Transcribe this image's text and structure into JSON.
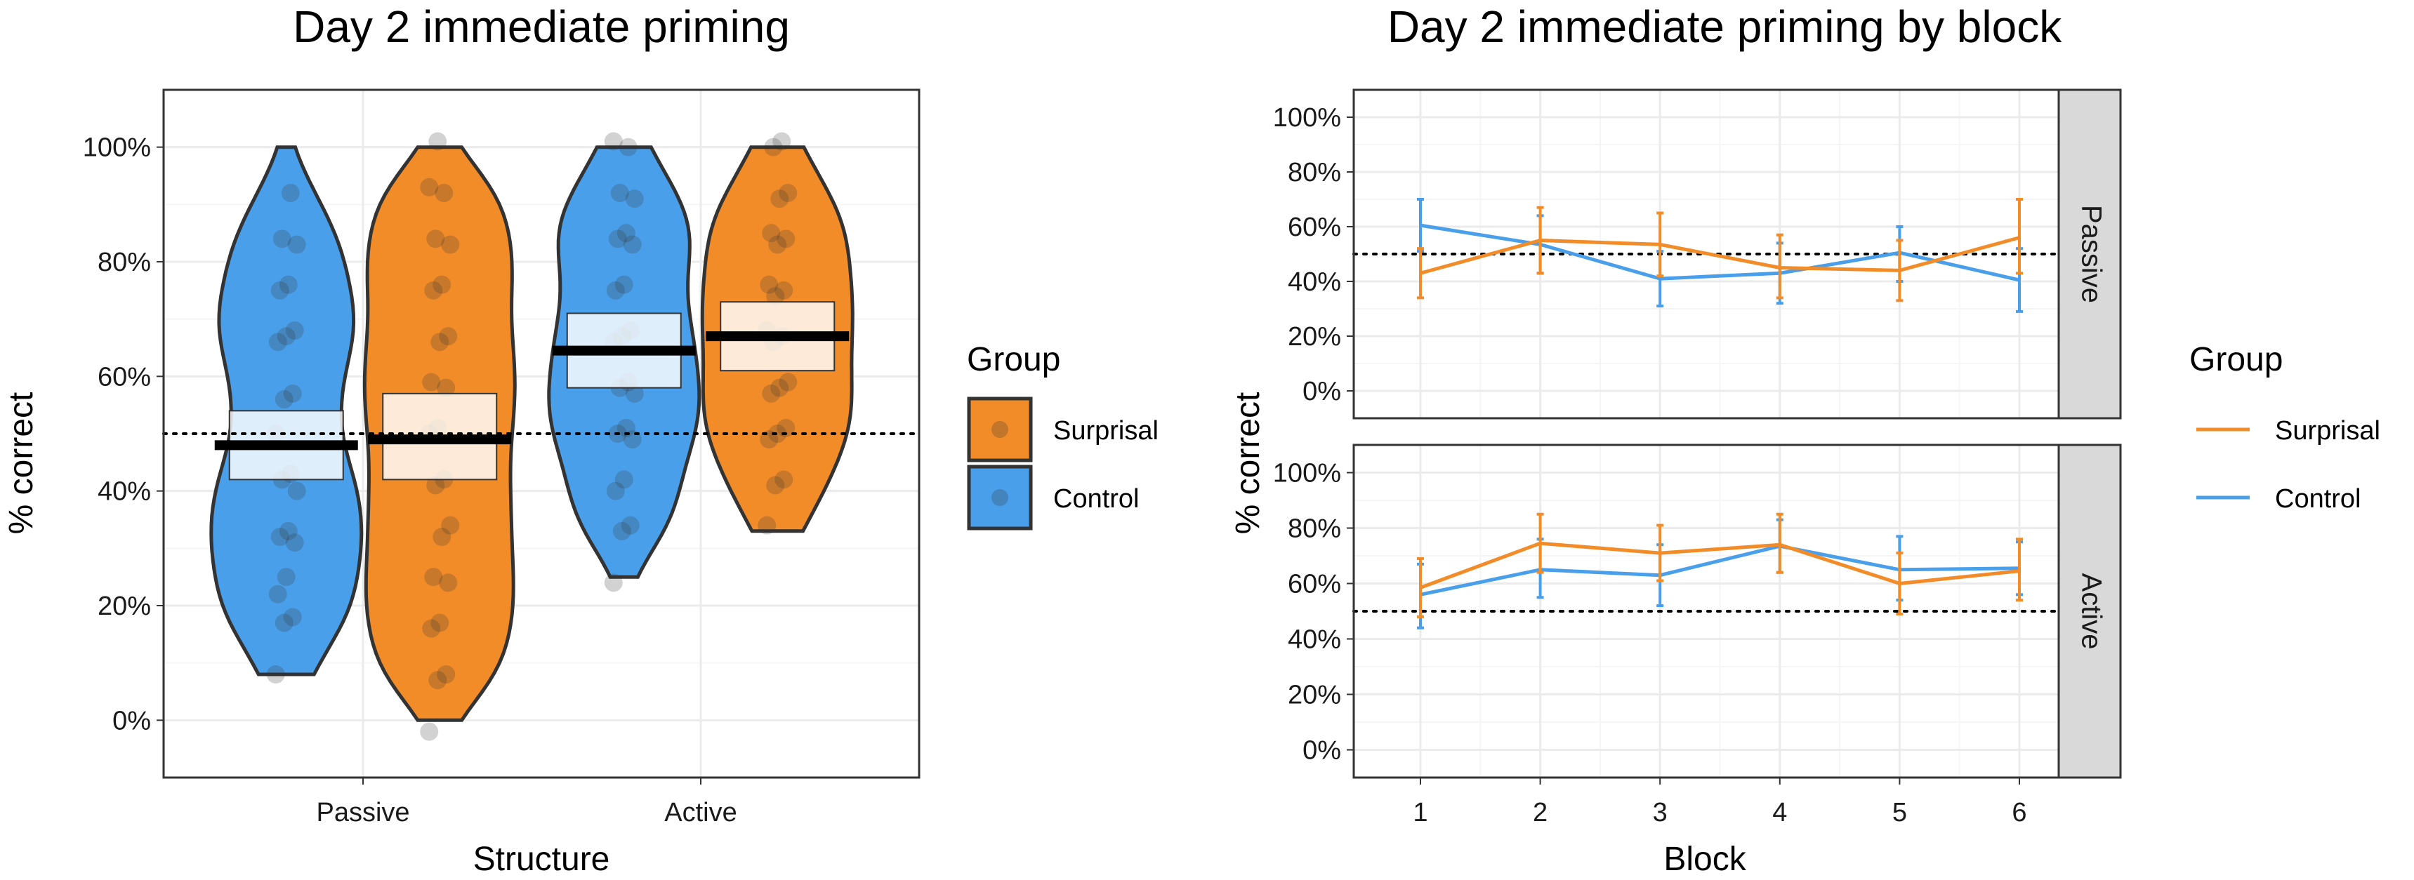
{
  "colors": {
    "surprisal": "#F28C28",
    "control": "#4A9FEA",
    "grid_major": "#EBEBEB",
    "grid_minor": "#F5F5F5",
    "strip_bg": "#D9D9D9"
  },
  "chart_data": [
    {
      "type": "violin",
      "title": "Day 2 immediate priming",
      "xlabel": "Structure",
      "ylabel": "% correct",
      "ylim": [
        -0.1,
        1.1
      ],
      "yticks": [
        "0%",
        "20%",
        "40%",
        "60%",
        "80%",
        "100%"
      ],
      "categories": [
        "Passive",
        "Active"
      ],
      "chance_line": 0.5,
      "grid": true,
      "legend": {
        "title": "Group",
        "position": "right",
        "entries": [
          "Surprisal",
          "Control"
        ]
      },
      "series": [
        {
          "name": "Control",
          "color": "control",
          "groups": [
            {
              "category": "Passive",
              "range": [
                0.08,
                1.0
              ],
              "mean": 0.48,
              "ci": [
                0.42,
                0.54
              ],
              "points": [
                0.08,
                0.17,
                0.18,
                0.22,
                0.25,
                0.31,
                0.32,
                0.33,
                0.4,
                0.42,
                0.43,
                0.5,
                0.56,
                0.57,
                0.66,
                0.67,
                0.68,
                0.75,
                0.76,
                0.83,
                0.84,
                0.92
              ]
            },
            {
              "category": "Active",
              "range": [
                0.25,
                1.0
              ],
              "mean": 0.645,
              "ci": [
                0.58,
                0.71
              ],
              "points": [
                0.24,
                0.33,
                0.34,
                0.4,
                0.42,
                0.49,
                0.5,
                0.51,
                0.57,
                0.58,
                0.59,
                0.66,
                0.67,
                0.68,
                0.75,
                0.76,
                0.83,
                0.84,
                0.85,
                0.91,
                0.92,
                1.0,
                1.01
              ]
            }
          ]
        },
        {
          "name": "Surprisal",
          "color": "surprisal",
          "groups": [
            {
              "category": "Passive",
              "range": [
                0.0,
                1.0
              ],
              "mean": 0.49,
              "ci": [
                0.42,
                0.57
              ],
              "points": [
                -0.02,
                0.07,
                0.08,
                0.16,
                0.17,
                0.24,
                0.25,
                0.32,
                0.34,
                0.41,
                0.42,
                0.5,
                0.51,
                0.58,
                0.59,
                0.66,
                0.67,
                0.75,
                0.76,
                0.83,
                0.84,
                0.92,
                0.93,
                1.01
              ]
            },
            {
              "category": "Active",
              "range": [
                0.33,
                1.0
              ],
              "mean": 0.67,
              "ci": [
                0.61,
                0.73
              ],
              "points": [
                0.34,
                0.41,
                0.42,
                0.49,
                0.5,
                0.51,
                0.57,
                0.58,
                0.59,
                0.66,
                0.67,
                0.68,
                0.74,
                0.75,
                0.76,
                0.83,
                0.84,
                0.85,
                0.91,
                0.92,
                1.0,
                1.01
              ]
            }
          ]
        }
      ]
    },
    {
      "type": "line",
      "title": "Day 2 immediate priming by block",
      "xlabel": "Block",
      "ylabel": "% correct",
      "x": [
        1,
        2,
        3,
        4,
        5,
        6
      ],
      "ylim": [
        -0.1,
        1.1
      ],
      "yticks": [
        "0%",
        "20%",
        "40%",
        "60%",
        "80%",
        "100%"
      ],
      "chance_line": 0.5,
      "grid": true,
      "legend": {
        "title": "Group",
        "position": "right",
        "entries": [
          "Surprisal",
          "Control"
        ]
      },
      "facets": [
        {
          "label": "Passive",
          "series": [
            {
              "name": "Surprisal",
              "color": "surprisal",
              "values": [
                0.43,
                0.55,
                0.535,
                0.45,
                0.44,
                0.56
              ],
              "lower": [
                0.34,
                0.43,
                0.42,
                0.34,
                0.33,
                0.43
              ],
              "upper": [
                0.52,
                0.67,
                0.65,
                0.57,
                0.55,
                0.7
              ]
            },
            {
              "name": "Control",
              "color": "control",
              "values": [
                0.605,
                0.535,
                0.41,
                0.43,
                0.505,
                0.405
              ],
              "lower": [
                0.51,
                0.43,
                0.31,
                0.32,
                0.4,
                0.29
              ],
              "upper": [
                0.7,
                0.64,
                0.51,
                0.54,
                0.6,
                0.52
              ]
            }
          ]
        },
        {
          "label": "Active",
          "series": [
            {
              "name": "Surprisal",
              "color": "surprisal",
              "values": [
                0.585,
                0.745,
                0.71,
                0.74,
                0.6,
                0.645
              ],
              "lower": [
                0.48,
                0.64,
                0.61,
                0.64,
                0.49,
                0.54
              ],
              "upper": [
                0.69,
                0.85,
                0.81,
                0.85,
                0.71,
                0.76
              ]
            },
            {
              "name": "Control",
              "color": "control",
              "values": [
                0.56,
                0.65,
                0.63,
                0.735,
                0.65,
                0.655
              ],
              "lower": [
                0.44,
                0.55,
                0.52,
                0.64,
                0.54,
                0.56
              ],
              "upper": [
                0.67,
                0.76,
                0.74,
                0.83,
                0.77,
                0.75
              ]
            }
          ]
        }
      ]
    }
  ]
}
